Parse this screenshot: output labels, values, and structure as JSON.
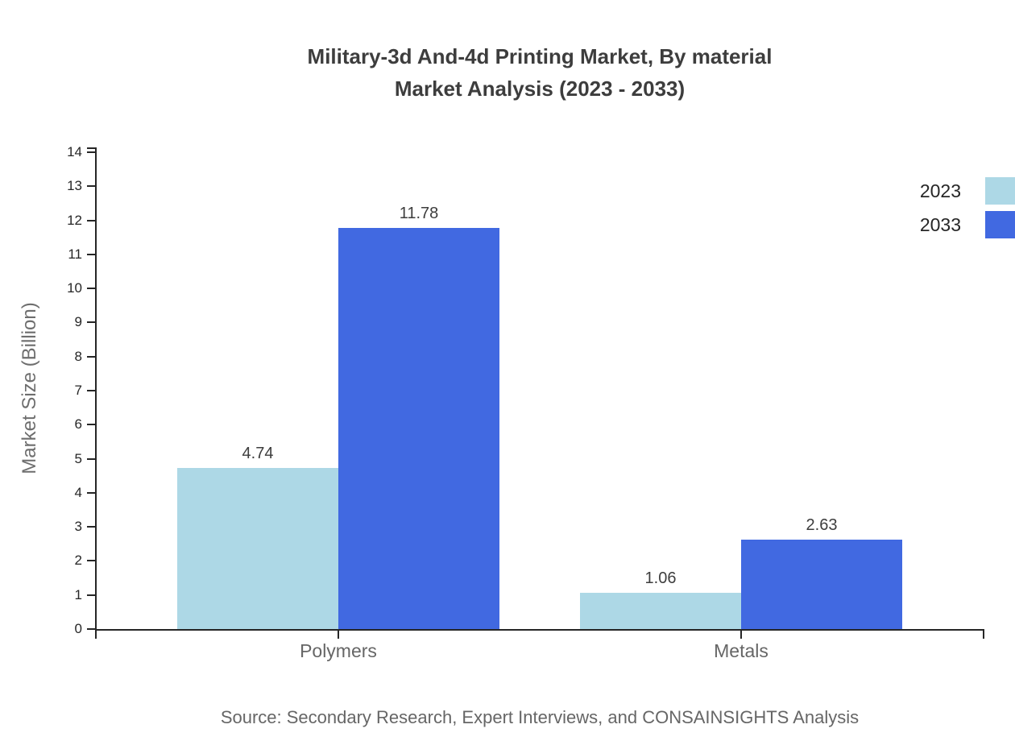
{
  "chart_data": {
    "type": "bar",
    "title_line1": "Military-3d And-4d Printing Market, By material",
    "title_line2": "Market Analysis (2023 - 2033)",
    "ylabel": "Market Size (Billion)",
    "categories": [
      "Polymers",
      "Metals"
    ],
    "series": [
      {
        "name": "2023",
        "color": "#ADD8E6",
        "values": [
          4.74,
          1.06
        ]
      },
      {
        "name": "2033",
        "color": "#4169E1",
        "values": [
          11.78,
          2.63
        ]
      }
    ],
    "ylim": [
      0,
      14
    ],
    "ytick_step": 1,
    "value_decimals": 2,
    "grid": false,
    "legend_position": "top-right",
    "source": "Source: Secondary Research, Expert Interviews, and CONSAINSIGHTS Analysis"
  }
}
